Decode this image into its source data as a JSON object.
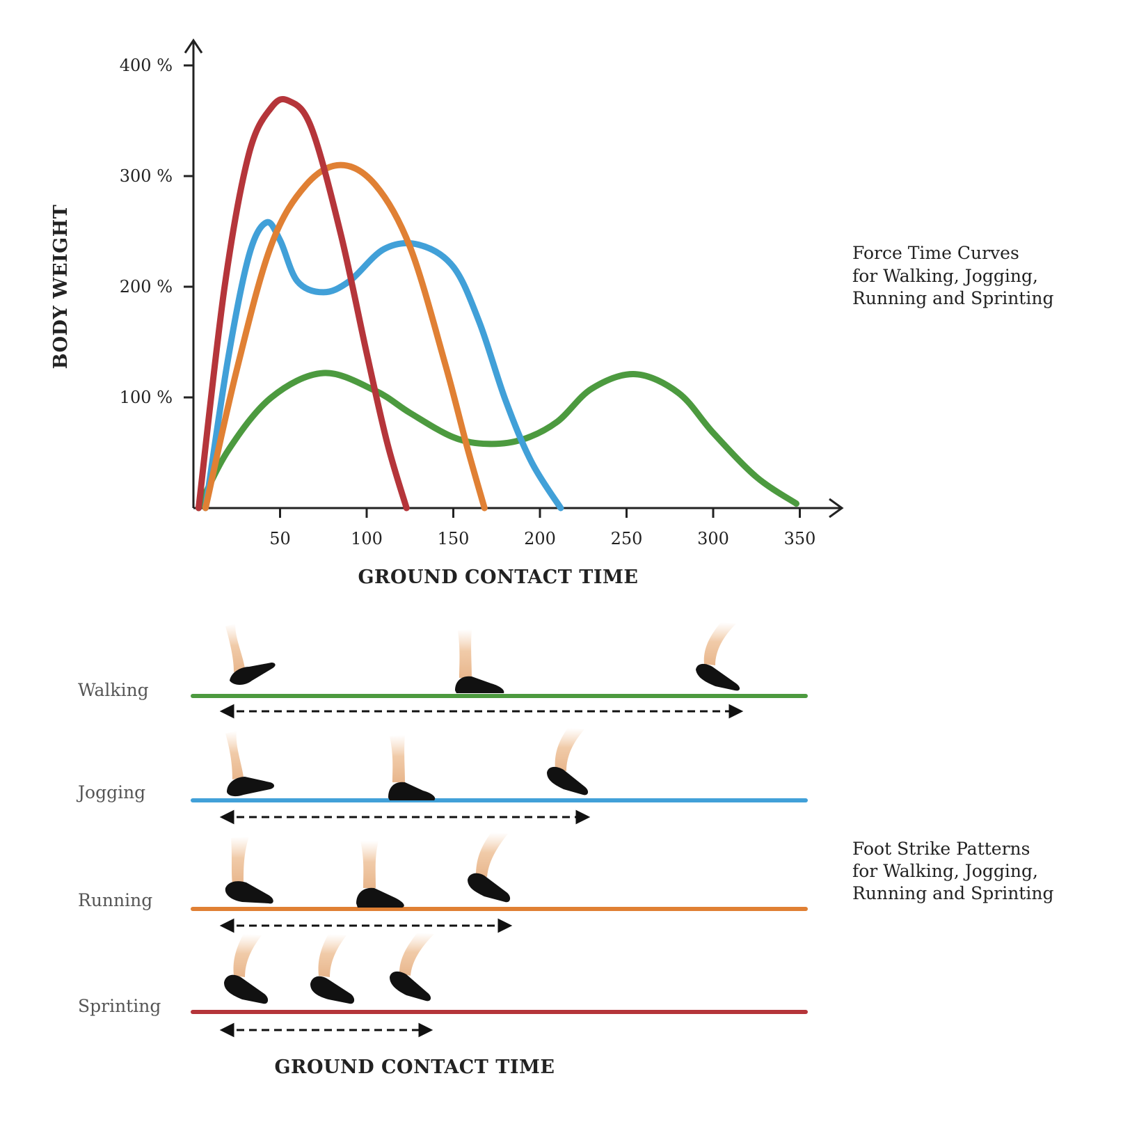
{
  "chart_data": [
    {
      "type": "line",
      "title": "",
      "caption": [
        "Force Time Curves",
        "for Walking, Jogging,",
        "Running and Sprinting"
      ],
      "xlabel": "GROUND CONTACT TIME",
      "ylabel": "BODY WEIGHT",
      "x_ticks": [
        50,
        100,
        150,
        200,
        250,
        300,
        350
      ],
      "y_ticks": [
        {
          "value": 100,
          "label": "100 %"
        },
        {
          "value": 200,
          "label": "200 %"
        },
        {
          "value": 300,
          "label": "300 %"
        },
        {
          "value": 400,
          "label": "400 %"
        }
      ],
      "xlim": [
        0,
        360
      ],
      "ylim": [
        0,
        400
      ],
      "grid": false,
      "legend": "none",
      "series": [
        {
          "key": "walking",
          "color": "#4c9a3f",
          "x": [
            3,
            20,
            45,
            75,
            105,
            125,
            150,
            170,
            190,
            210,
            230,
            255,
            280,
            300,
            325,
            348
          ],
          "y": [
            0,
            52,
            100,
            122,
            106,
            86,
            64,
            58,
            62,
            78,
            108,
            121,
            104,
            68,
            28,
            4
          ]
        },
        {
          "key": "jogging",
          "color": "#41a0d8",
          "x": [
            7,
            20,
            32,
            42,
            50,
            60,
            75,
            90,
            110,
            130,
            150,
            165,
            180,
            195,
            212
          ],
          "y": [
            0,
            135,
            228,
            258,
            242,
            205,
            195,
            205,
            234,
            238,
            218,
            168,
            98,
            42,
            0
          ]
        },
        {
          "key": "running",
          "color": "#e08034",
          "x": [
            7,
            25,
            45,
            65,
            85,
            105,
            125,
            145,
            158,
            168
          ],
          "y": [
            0,
            125,
            238,
            292,
            310,
            292,
            236,
            132,
            55,
            0
          ]
        },
        {
          "key": "sprinting",
          "color": "#b5353a",
          "x": [
            3,
            18,
            32,
            45,
            55,
            68,
            85,
            100,
            112,
            123
          ],
          "y": [
            0,
            200,
            320,
            362,
            368,
            344,
            248,
            140,
            58,
            0
          ]
        }
      ]
    },
    {
      "type": "diagram",
      "caption": [
        "Foot Strike Patterns",
        "for Walking, Jogging,",
        "Running and Sprinting"
      ],
      "xlabel": "GROUND CONTACT TIME",
      "rows": [
        {
          "label": "Walking",
          "color": "#4c9a3f",
          "contact_span": 300
        },
        {
          "label": "Jogging",
          "color": "#41a0d8",
          "contact_span": 210
        },
        {
          "label": "Running",
          "color": "#e08034",
          "contact_span": 165
        },
        {
          "label": "Sprinting",
          "color": "#b5353a",
          "contact_span": 118
        }
      ]
    }
  ]
}
